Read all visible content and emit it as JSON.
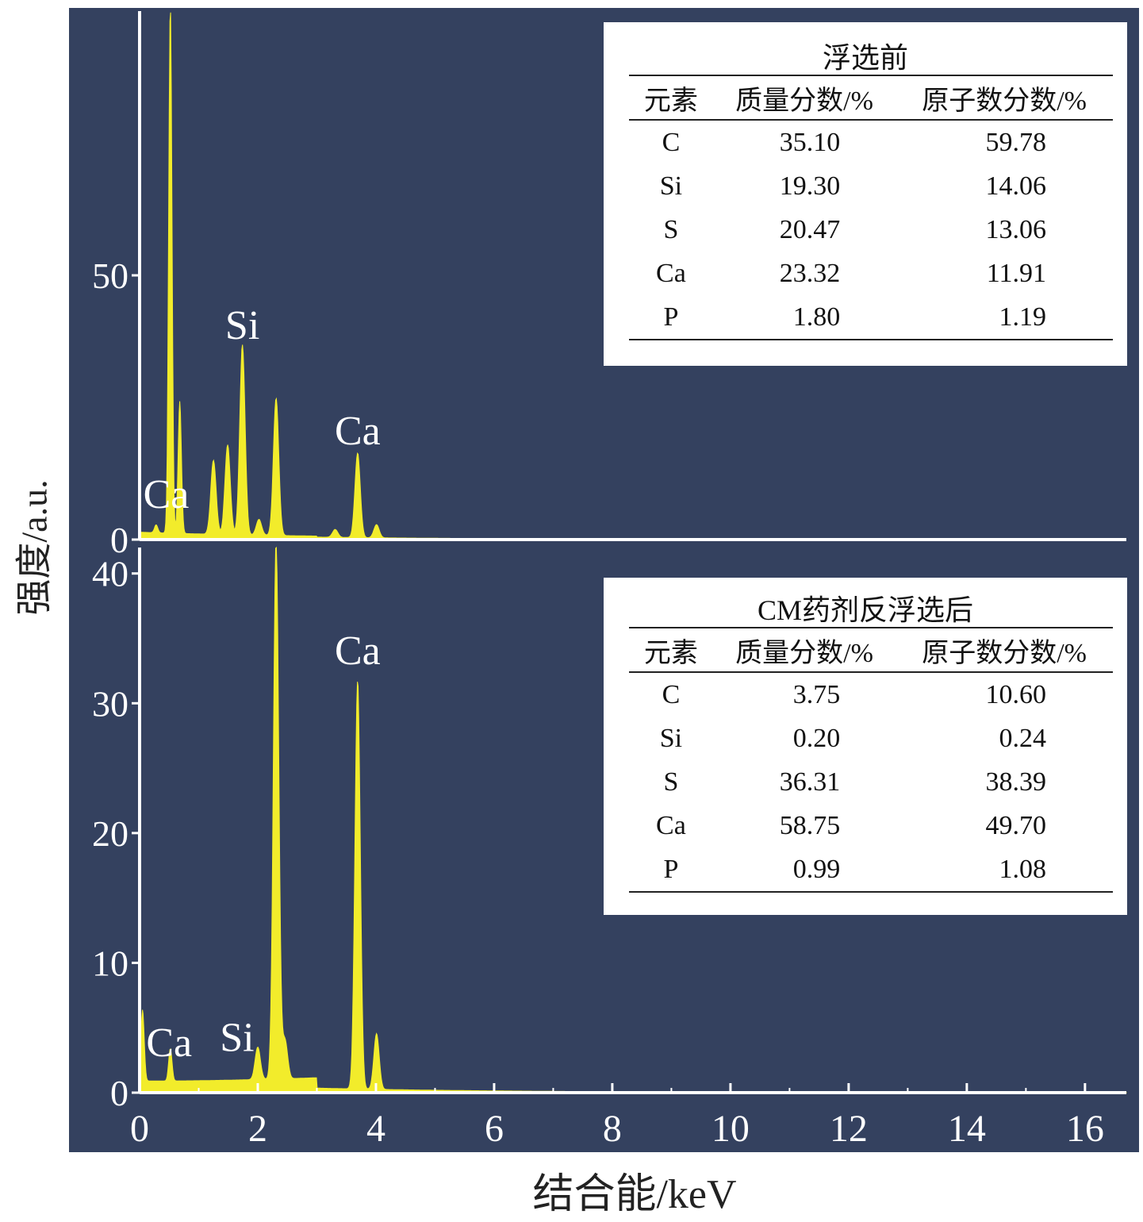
{
  "figure": {
    "y_axis_title": "强度/a.u.",
    "x_axis_title": "结合能/keV",
    "background_color": "#34415f",
    "spectrum_color": "#f2ec2b",
    "axis_color": "#ffffff"
  },
  "chart_data": [
    {
      "type": "area",
      "panel": "top",
      "xlabel": "结合能/keV",
      "ylabel": "强度/a.u.",
      "xlim": [
        0,
        16.7
      ],
      "ylim": [
        0,
        100
      ],
      "yticks": [
        0,
        50
      ],
      "grid": false,
      "peaks": [
        {
          "x": 0.28,
          "y": 1.5
        },
        {
          "x": 0.52,
          "y": 100
        },
        {
          "x": 0.68,
          "y": 25
        },
        {
          "x": 1.25,
          "y": 14
        },
        {
          "x": 1.49,
          "y": 17
        },
        {
          "x": 1.74,
          "y": 36
        },
        {
          "x": 2.02,
          "y": 3
        },
        {
          "x": 2.31,
          "y": 26
        },
        {
          "x": 3.31,
          "y": 1.5
        },
        {
          "x": 3.69,
          "y": 16
        },
        {
          "x": 4.01,
          "y": 2.5
        }
      ],
      "annotations": [
        {
          "text": "Ca",
          "x": 0.45,
          "y": 6
        },
        {
          "text": "Si",
          "x": 1.74,
          "y": 38
        },
        {
          "text": "Ca",
          "x": 3.69,
          "y": 18
        }
      ],
      "legend_table": {
        "title": "浮选前",
        "columns": [
          "元素",
          "质量分数/%",
          "原子数分数/%"
        ],
        "rows": [
          [
            "C",
            "35.10",
            "59.78"
          ],
          [
            "Si",
            "19.30",
            "14.06"
          ],
          [
            "S",
            "20.47",
            "13.06"
          ],
          [
            "Ca",
            "23.32",
            "11.91"
          ],
          [
            "P",
            "1.80",
            "1.19"
          ]
        ],
        "position": "top-right"
      }
    },
    {
      "type": "area",
      "panel": "bottom",
      "xlabel": "结合能/keV",
      "ylabel": "强度/a.u.",
      "xlim": [
        0,
        16.7
      ],
      "ylim": [
        0,
        42
      ],
      "xticks": [
        0,
        2,
        4,
        6,
        8,
        10,
        12,
        14,
        16
      ],
      "yticks": [
        0,
        10,
        20,
        30,
        40
      ],
      "grid": false,
      "peaks": [
        {
          "x": 0.05,
          "y": 5.5
        },
        {
          "x": 0.52,
          "y": 2.5
        },
        {
          "x": 2.0,
          "y": 2.5
        },
        {
          "x": 2.31,
          "y": 41.5
        },
        {
          "x": 2.46,
          "y": 3
        },
        {
          "x": 3.69,
          "y": 31.5
        },
        {
          "x": 4.01,
          "y": 4.3
        }
      ],
      "annotations": [
        {
          "text": "Ca",
          "x": 0.5,
          "y": 2.8
        },
        {
          "text": "Si",
          "x": 1.65,
          "y": 3.2
        },
        {
          "text": "Ca",
          "x": 3.69,
          "y": 33
        }
      ],
      "legend_table": {
        "title": "CM药剂反浮选后",
        "columns": [
          "元素",
          "质量分数/%",
          "原子数分数/%"
        ],
        "rows": [
          [
            "C",
            "3.75",
            "10.60"
          ],
          [
            "Si",
            "0.20",
            "0.24"
          ],
          [
            "S",
            "36.31",
            "38.39"
          ],
          [
            "Ca",
            "58.75",
            "49.70"
          ],
          [
            "P",
            "0.99",
            "1.08"
          ]
        ],
        "position": "top-right"
      }
    }
  ]
}
